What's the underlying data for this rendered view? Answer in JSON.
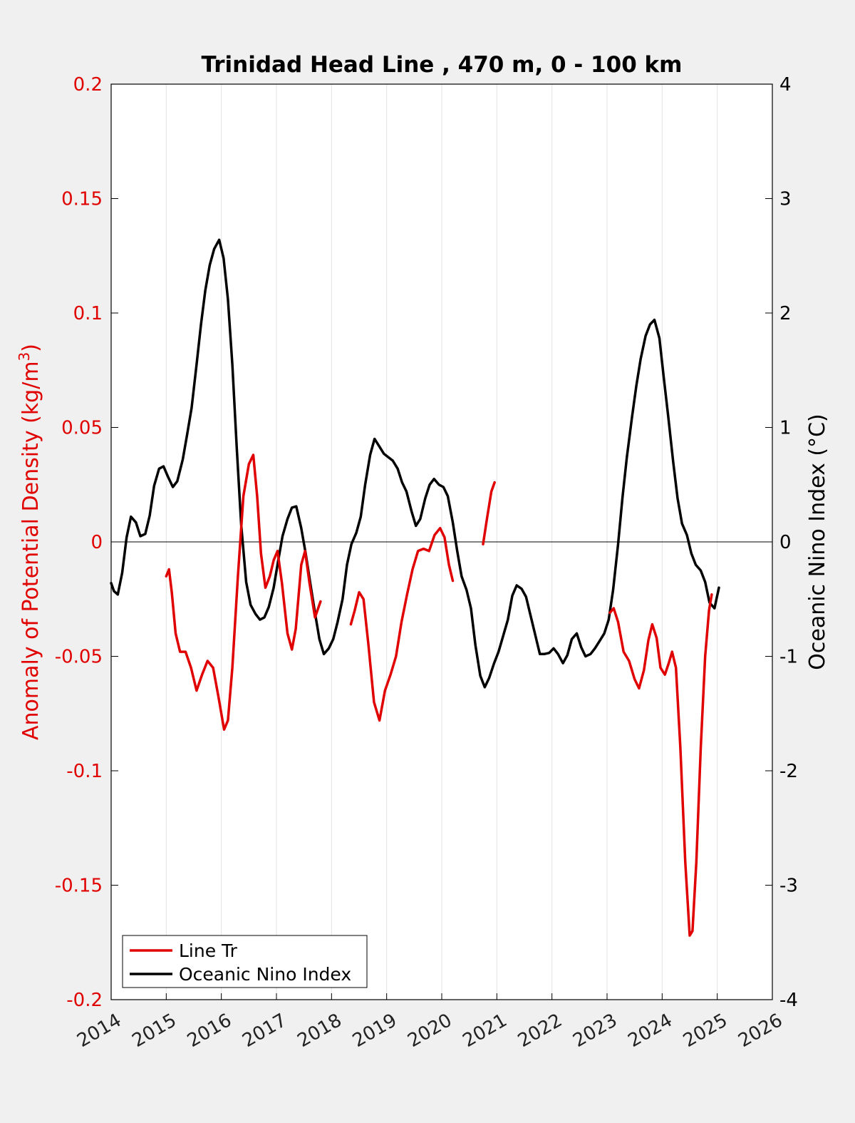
{
  "chart_data": {
    "type": "line",
    "title": "Trinidad Head Line , 470 m, 0 - 100 km",
    "xlabel": "",
    "ylabel_left_text": "Anomaly of Potential Density (kg/m",
    "ylabel_left_sup": "3",
    "ylabel_left_close": ")",
    "ylabel_right": "Oceanic Nino Index (°C)",
    "xlim": [
      2014,
      2026
    ],
    "ylim_left": [
      -0.2,
      0.2
    ],
    "ylim_right": [
      -4,
      4
    ],
    "x_ticks": [
      "2014",
      "2015",
      "2016",
      "2017",
      "2018",
      "2019",
      "2020",
      "2021",
      "2022",
      "2023",
      "2024",
      "2025",
      "2026"
    ],
    "y_ticks_left": [
      "-0.2",
      "-0.15",
      "-0.1",
      "-0.05",
      "0",
      "0.05",
      "0.1",
      "0.15",
      "0.2"
    ],
    "y_ticks_right": [
      "-4",
      "-3",
      "-2",
      "-1",
      "0",
      "1",
      "2",
      "3",
      "4"
    ],
    "grid": "vertical",
    "legend_position": "bottom-left",
    "colors": {
      "line_tr": "#e00000",
      "oni": "#000000"
    },
    "series": [
      {
        "name": "Line Tr",
        "axis": "left",
        "segments": [
          [
            [
              2015.0,
              -0.015
            ],
            [
              2015.05,
              -0.012
            ],
            [
              2015.1,
              -0.022
            ],
            [
              2015.17,
              -0.04
            ],
            [
              2015.25,
              -0.048
            ],
            [
              2015.35,
              -0.048
            ],
            [
              2015.45,
              -0.055
            ],
            [
              2015.55,
              -0.065
            ],
            [
              2015.65,
              -0.058
            ],
            [
              2015.75,
              -0.052
            ],
            [
              2015.85,
              -0.055
            ],
            [
              2015.95,
              -0.068
            ],
            [
              2016.05,
              -0.082
            ],
            [
              2016.12,
              -0.078
            ],
            [
              2016.2,
              -0.055
            ],
            [
              2016.3,
              -0.015
            ],
            [
              2016.4,
              0.02
            ],
            [
              2016.5,
              0.034
            ],
            [
              2016.58,
              0.038
            ],
            [
              2016.65,
              0.02
            ],
            [
              2016.72,
              -0.005
            ],
            [
              2016.8,
              -0.02
            ],
            [
              2016.88,
              -0.015
            ],
            [
              2016.95,
              -0.008
            ],
            [
              2017.02,
              -0.004
            ],
            [
              2017.1,
              -0.018
            ],
            [
              2017.2,
              -0.04
            ],
            [
              2017.28,
              -0.047
            ],
            [
              2017.35,
              -0.038
            ],
            [
              2017.45,
              -0.01
            ],
            [
              2017.52,
              -0.004
            ],
            [
              2017.6,
              -0.018
            ],
            [
              2017.7,
              -0.033
            ],
            [
              2017.8,
              -0.026
            ]
          ],
          [
            [
              2018.35,
              -0.036
            ],
            [
              2018.42,
              -0.03
            ],
            [
              2018.5,
              -0.022
            ],
            [
              2018.58,
              -0.025
            ],
            [
              2018.67,
              -0.045
            ],
            [
              2018.77,
              -0.07
            ],
            [
              2018.87,
              -0.078
            ],
            [
              2018.97,
              -0.065
            ],
            [
              2019.07,
              -0.058
            ],
            [
              2019.17,
              -0.05
            ],
            [
              2019.27,
              -0.035
            ],
            [
              2019.37,
              -0.023
            ],
            [
              2019.47,
              -0.012
            ],
            [
              2019.57,
              -0.004
            ],
            [
              2019.67,
              -0.003
            ],
            [
              2019.77,
              -0.004
            ],
            [
              2019.87,
              0.003
            ],
            [
              2019.97,
              0.006
            ],
            [
              2020.05,
              0.002
            ],
            [
              2020.13,
              -0.01
            ],
            [
              2020.2,
              -0.017
            ]
          ],
          [
            [
              2020.75,
              -0.001
            ],
            [
              2020.82,
              0.01
            ],
            [
              2020.9,
              0.022
            ],
            [
              2020.96,
              0.026
            ]
          ],
          [
            [
              2023.05,
              -0.031
            ],
            [
              2023.12,
              -0.029
            ],
            [
              2023.2,
              -0.035
            ],
            [
              2023.3,
              -0.048
            ],
            [
              2023.4,
              -0.052
            ],
            [
              2023.5,
              -0.06
            ],
            [
              2023.58,
              -0.064
            ],
            [
              2023.67,
              -0.056
            ],
            [
              2023.75,
              -0.043
            ],
            [
              2023.82,
              -0.036
            ],
            [
              2023.9,
              -0.042
            ],
            [
              2023.97,
              -0.055
            ],
            [
              2024.05,
              -0.058
            ],
            [
              2024.12,
              -0.053
            ],
            [
              2024.18,
              -0.048
            ],
            [
              2024.25,
              -0.055
            ],
            [
              2024.33,
              -0.09
            ],
            [
              2024.42,
              -0.14
            ],
            [
              2024.5,
              -0.172
            ],
            [
              2024.55,
              -0.17
            ],
            [
              2024.62,
              -0.14
            ],
            [
              2024.7,
              -0.09
            ],
            [
              2024.78,
              -0.05
            ],
            [
              2024.85,
              -0.03
            ],
            [
              2024.9,
              -0.023
            ]
          ]
        ]
      },
      {
        "name": "Oceanic Nino Index",
        "axis": "right",
        "segments": [
          [
            [
              2014.0,
              -0.36
            ],
            [
              2014.05,
              -0.43
            ],
            [
              2014.12,
              -0.46
            ],
            [
              2014.2,
              -0.27
            ],
            [
              2014.28,
              0.04
            ],
            [
              2014.36,
              0.22
            ],
            [
              2014.45,
              0.17
            ],
            [
              2014.53,
              0.05
            ],
            [
              2014.62,
              0.07
            ],
            [
              2014.7,
              0.23
            ],
            [
              2014.78,
              0.49
            ],
            [
              2014.87,
              0.64
            ],
            [
              2014.95,
              0.66
            ],
            [
              2015.03,
              0.57
            ],
            [
              2015.12,
              0.48
            ],
            [
              2015.2,
              0.53
            ],
            [
              2015.3,
              0.72
            ],
            [
              2015.38,
              0.94
            ],
            [
              2015.46,
              1.17
            ],
            [
              2015.55,
              1.55
            ],
            [
              2015.63,
              1.9
            ],
            [
              2015.71,
              2.2
            ],
            [
              2015.79,
              2.42
            ],
            [
              2015.87,
              2.56
            ],
            [
              2015.96,
              2.64
            ],
            [
              2016.04,
              2.48
            ],
            [
              2016.12,
              2.12
            ],
            [
              2016.2,
              1.55
            ],
            [
              2016.28,
              0.82
            ],
            [
              2016.36,
              0.15
            ],
            [
              2016.45,
              -0.35
            ],
            [
              2016.53,
              -0.55
            ],
            [
              2016.62,
              -0.63
            ],
            [
              2016.7,
              -0.68
            ],
            [
              2016.78,
              -0.66
            ],
            [
              2016.86,
              -0.57
            ],
            [
              2016.95,
              -0.4
            ],
            [
              2017.03,
              -0.17
            ],
            [
              2017.11,
              0.05
            ],
            [
              2017.2,
              0.2
            ],
            [
              2017.28,
              0.3
            ],
            [
              2017.36,
              0.31
            ],
            [
              2017.45,
              0.12
            ],
            [
              2017.53,
              -0.1
            ],
            [
              2017.61,
              -0.35
            ],
            [
              2017.7,
              -0.62
            ],
            [
              2017.78,
              -0.85
            ],
            [
              2017.86,
              -0.98
            ],
            [
              2017.95,
              -0.93
            ],
            [
              2018.03,
              -0.85
            ],
            [
              2018.11,
              -0.7
            ],
            [
              2018.2,
              -0.5
            ],
            [
              2018.28,
              -0.2
            ],
            [
              2018.36,
              -0.02
            ],
            [
              2018.45,
              0.08
            ],
            [
              2018.53,
              0.22
            ],
            [
              2018.61,
              0.5
            ],
            [
              2018.7,
              0.76
            ],
            [
              2018.78,
              0.9
            ],
            [
              2018.86,
              0.84
            ],
            [
              2018.95,
              0.77
            ],
            [
              2019.03,
              0.74
            ],
            [
              2019.11,
              0.71
            ],
            [
              2019.2,
              0.64
            ],
            [
              2019.28,
              0.52
            ],
            [
              2019.36,
              0.44
            ],
            [
              2019.45,
              0.27
            ],
            [
              2019.53,
              0.14
            ],
            [
              2019.61,
              0.2
            ],
            [
              2019.7,
              0.38
            ],
            [
              2019.78,
              0.5
            ],
            [
              2019.86,
              0.55
            ],
            [
              2019.95,
              0.5
            ],
            [
              2020.03,
              0.48
            ],
            [
              2020.11,
              0.4
            ],
            [
              2020.2,
              0.17
            ],
            [
              2020.28,
              -0.08
            ],
            [
              2020.36,
              -0.3
            ],
            [
              2020.45,
              -0.42
            ],
            [
              2020.53,
              -0.58
            ],
            [
              2020.61,
              -0.9
            ],
            [
              2020.7,
              -1.17
            ],
            [
              2020.78,
              -1.27
            ],
            [
              2020.86,
              -1.19
            ],
            [
              2020.95,
              -1.06
            ],
            [
              2021.03,
              -0.96
            ],
            [
              2021.11,
              -0.83
            ],
            [
              2021.2,
              -0.68
            ],
            [
              2021.28,
              -0.47
            ],
            [
              2021.36,
              -0.38
            ],
            [
              2021.45,
              -0.41
            ],
            [
              2021.53,
              -0.48
            ],
            [
              2021.61,
              -0.64
            ],
            [
              2021.7,
              -0.82
            ],
            [
              2021.78,
              -0.98
            ],
            [
              2021.86,
              -0.98
            ],
            [
              2021.95,
              -0.97
            ],
            [
              2022.03,
              -0.93
            ],
            [
              2022.11,
              -0.98
            ],
            [
              2022.2,
              -1.06
            ],
            [
              2022.28,
              -0.99
            ],
            [
              2022.36,
              -0.85
            ],
            [
              2022.45,
              -0.8
            ],
            [
              2022.53,
              -0.92
            ],
            [
              2022.61,
              -1.0
            ],
            [
              2022.7,
              -0.98
            ],
            [
              2022.78,
              -0.93
            ],
            [
              2022.86,
              -0.87
            ],
            [
              2022.95,
              -0.8
            ],
            [
              2023.03,
              -0.68
            ],
            [
              2023.11,
              -0.42
            ],
            [
              2023.2,
              -0.02
            ],
            [
              2023.28,
              0.39
            ],
            [
              2023.36,
              0.74
            ],
            [
              2023.45,
              1.08
            ],
            [
              2023.53,
              1.36
            ],
            [
              2023.61,
              1.6
            ],
            [
              2023.7,
              1.8
            ],
            [
              2023.78,
              1.9
            ],
            [
              2023.86,
              1.94
            ],
            [
              2023.95,
              1.78
            ],
            [
              2024.03,
              1.43
            ],
            [
              2024.11,
              1.1
            ],
            [
              2024.2,
              0.7
            ],
            [
              2024.28,
              0.38
            ],
            [
              2024.36,
              0.16
            ],
            [
              2024.45,
              0.06
            ],
            [
              2024.53,
              -0.1
            ],
            [
              2024.61,
              -0.2
            ],
            [
              2024.7,
              -0.25
            ],
            [
              2024.78,
              -0.35
            ],
            [
              2024.86,
              -0.53
            ],
            [
              2024.95,
              -0.58
            ],
            [
              2025.03,
              -0.4
            ]
          ]
        ]
      }
    ]
  },
  "legend": {
    "items": [
      {
        "label": "Line Tr",
        "color": "#e00000"
      },
      {
        "label": "Oceanic Nino Index",
        "color": "#000000"
      }
    ]
  }
}
